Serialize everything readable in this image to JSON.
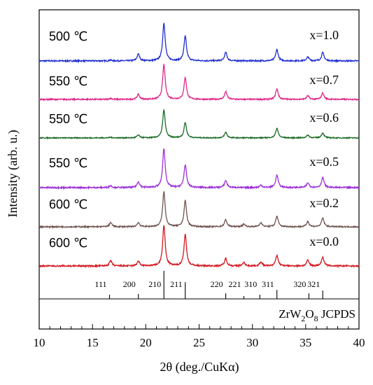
{
  "chart_data": {
    "type": "line",
    "xlabel": "2θ (deg./CuKα)",
    "ylabel": "Intensity (arb. u.)",
    "xlim": [
      10,
      40
    ],
    "xticks": [
      10,
      15,
      20,
      25,
      30,
      35,
      40
    ],
    "series": [
      {
        "name": "x=1.0",
        "temperature": "500 ℃",
        "color": "#1f2fd0",
        "peaks": [
          [
            16.7,
            0.02
          ],
          [
            19.3,
            0.18
          ],
          [
            21.7,
            1.0
          ],
          [
            23.7,
            0.65
          ],
          [
            27.5,
            0.22
          ],
          [
            32.3,
            0.3
          ],
          [
            35.2,
            0.1
          ],
          [
            36.6,
            0.22
          ]
        ]
      },
      {
        "name": "x=0.7",
        "temperature": "550 ℃",
        "color": "#e0288a",
        "peaks": [
          [
            16.7,
            0.03
          ],
          [
            19.3,
            0.14
          ],
          [
            21.7,
            1.0
          ],
          [
            23.7,
            0.62
          ],
          [
            27.5,
            0.22
          ],
          [
            32.3,
            0.3
          ],
          [
            35.2,
            0.1
          ],
          [
            36.6,
            0.18
          ]
        ]
      },
      {
        "name": "x=0.6",
        "temperature": "550 ℃",
        "color": "#1a6b25",
        "peaks": [
          [
            16.7,
            0.02
          ],
          [
            19.3,
            0.1
          ],
          [
            21.7,
            1.0
          ],
          [
            23.7,
            0.55
          ],
          [
            27.5,
            0.2
          ],
          [
            32.3,
            0.35
          ],
          [
            35.2,
            0.1
          ],
          [
            36.6,
            0.18
          ]
        ]
      },
      {
        "name": "x=0.5",
        "temperature": "550 ℃",
        "color": "#9b30d8",
        "peaks": [
          [
            16.7,
            0.05
          ],
          [
            19.3,
            0.15
          ],
          [
            21.7,
            1.0
          ],
          [
            23.7,
            0.58
          ],
          [
            27.5,
            0.18
          ],
          [
            30.8,
            0.06
          ],
          [
            32.3,
            0.32
          ],
          [
            35.2,
            0.12
          ],
          [
            36.6,
            0.26
          ]
        ]
      },
      {
        "name": "x=0.2",
        "temperature": "600 ℃",
        "color": "#705550",
        "peaks": [
          [
            16.7,
            0.12
          ],
          [
            19.3,
            0.12
          ],
          [
            21.7,
            1.0
          ],
          [
            23.7,
            0.75
          ],
          [
            27.5,
            0.2
          ],
          [
            29.2,
            0.08
          ],
          [
            30.8,
            0.12
          ],
          [
            32.3,
            0.3
          ],
          [
            35.2,
            0.15
          ],
          [
            36.6,
            0.25
          ]
        ]
      },
      {
        "name": "x=0.0",
        "temperature": "600 ℃",
        "color": "#d41820",
        "peaks": [
          [
            16.7,
            0.13
          ],
          [
            19.3,
            0.12
          ],
          [
            21.7,
            1.0
          ],
          [
            23.7,
            0.78
          ],
          [
            27.5,
            0.18
          ],
          [
            29.2,
            0.08
          ],
          [
            30.8,
            0.1
          ],
          [
            32.3,
            0.26
          ],
          [
            35.2,
            0.14
          ],
          [
            36.6,
            0.22
          ]
        ]
      }
    ],
    "reference": {
      "label": "ZrW",
      "label_sub2": "2",
      "label_o": "O",
      "label_sub8": "8",
      "label_tail": "JCPDS",
      "lines": [
        {
          "x": 16.6,
          "hkl": "111",
          "h": 0.15
        },
        {
          "x": 19.3,
          "hkl": "200",
          "h": 0.18
        },
        {
          "x": 21.7,
          "hkl": "210",
          "h": 1.0
        },
        {
          "x": 23.7,
          "hkl": "211",
          "h": 0.6
        },
        {
          "x": 27.5,
          "hkl": "220",
          "h": 0.2
        },
        {
          "x": 29.2,
          "hkl": "221",
          "h": 0.1
        },
        {
          "x": 30.7,
          "hkl": "310",
          "h": 0.15
        },
        {
          "x": 32.3,
          "hkl": "311",
          "h": 0.32
        },
        {
          "x": 35.3,
          "hkl": "320",
          "h": 0.2
        },
        {
          "x": 36.6,
          "hkl": "321",
          "h": 0.3
        }
      ]
    }
  }
}
